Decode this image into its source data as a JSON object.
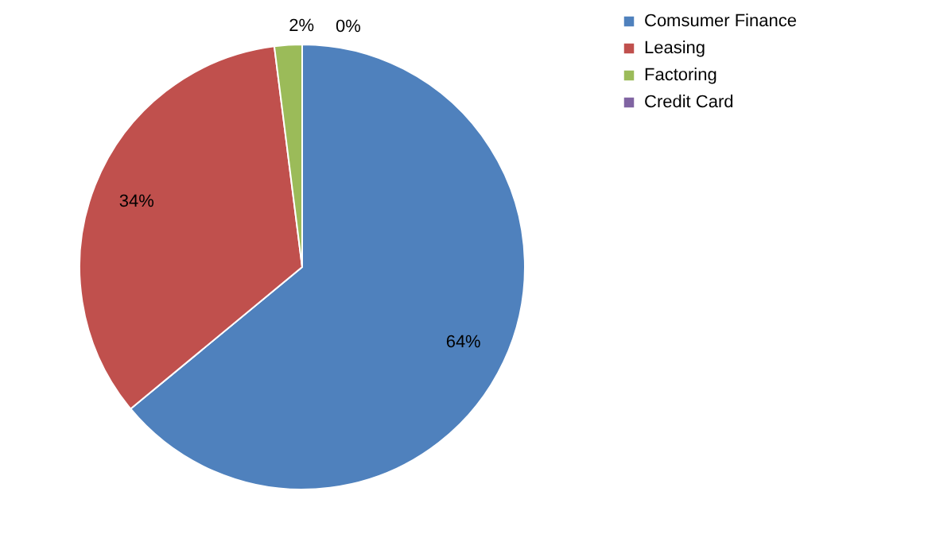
{
  "chart_data": {
    "type": "pie",
    "categories": [
      "Comsumer Finance",
      "Leasing",
      "Factoring",
      "Credit Card"
    ],
    "values": [
      64,
      34,
      2,
      0
    ],
    "colors": [
      "#4f81bd",
      "#c0504d",
      "#9bbb59",
      "#8064a2"
    ],
    "value_labels": [
      "64%",
      "34%",
      "2%",
      "0%"
    ],
    "legend": "right"
  }
}
